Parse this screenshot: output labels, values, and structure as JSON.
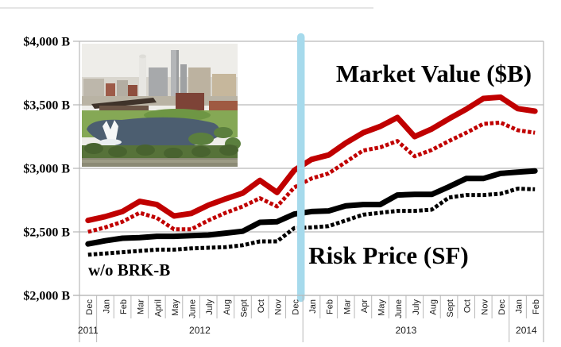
{
  "annotations": {
    "market_value_title": "Market Value ($B)",
    "risk_price_title": "Risk Price (SF)",
    "wo_brkb_label": "w/o BRK-B"
  },
  "y_axis": {
    "tick_labels": [
      "$4,000 B",
      "$3,500 B",
      "$3,000 B",
      "$2,500 B",
      "$2,000 B"
    ],
    "tick_values": [
      4000,
      3500,
      3000,
      2500,
      2000
    ]
  },
  "x_axis": {
    "month_labels": [
      "Dec",
      "Jan",
      "Feb",
      "Mar",
      "April",
      "May",
      "June",
      "July",
      "Aug",
      "Sept",
      "Oct",
      "Nov",
      "Dec",
      "Jan",
      "Feb",
      "Mar",
      "Apr",
      "May",
      "June",
      "July",
      "Aug",
      "Sept",
      "Oct",
      "Nov",
      "Dec",
      "Jan",
      "Feb"
    ],
    "year_labels": [
      {
        "label": "2011",
        "first_month_index": 0,
        "last_month_index": 0
      },
      {
        "label": "2012",
        "first_month_index": 1,
        "last_month_index": 12
      },
      {
        "label": "2013",
        "first_month_index": 13,
        "last_month_index": 24
      },
      {
        "label": "2014",
        "first_month_index": 25,
        "last_month_index": 26
      }
    ]
  },
  "colors": {
    "market_value": "#C00000",
    "risk_price": "#000000",
    "divider": "#A6DAEC",
    "gridline": "#B9B9B9",
    "top_rule": "#CBCBCB"
  },
  "chart_data": {
    "type": "line",
    "title": "Market Value ($B) vs Risk Price (SF)",
    "x_categories": [
      "Dec 2011",
      "Jan 2012",
      "Feb 2012",
      "Mar 2012",
      "April 2012",
      "May 2012",
      "June 2012",
      "July 2012",
      "Aug 2012",
      "Sept 2012",
      "Oct 2012",
      "Nov 2012",
      "Dec 2012",
      "Jan 2013",
      "Feb 2013",
      "Mar 2013",
      "Apr 2013",
      "May 2013",
      "June 2013",
      "July 2013",
      "Aug 2013",
      "Sept 2013",
      "Oct 2013",
      "Nov 2013",
      "Dec 2013",
      "Jan 2014",
      "Feb 2014"
    ],
    "ylim": [
      2000,
      4000
    ],
    "y_tick_step": 500,
    "y_unit": "$ Billions",
    "grid": true,
    "legend_position": "none (labels drawn inside plot)",
    "series": [
      {
        "name": "Market Value ($B)",
        "line_style": "solid",
        "color": "#C00000",
        "values": [
          2590,
          2620,
          2660,
          2740,
          2715,
          2625,
          2645,
          2710,
          2760,
          2805,
          2905,
          2810,
          2985,
          3070,
          3105,
          3200,
          3280,
          3330,
          3400,
          3250,
          3310,
          3390,
          3465,
          3550,
          3560,
          3470,
          3450
        ]
      },
      {
        "name": "Market Value ($B) w/o BRK-B",
        "line_style": "dotted",
        "color": "#C00000",
        "values": [
          2500,
          2535,
          2580,
          2650,
          2610,
          2520,
          2520,
          2590,
          2650,
          2700,
          2765,
          2700,
          2850,
          2920,
          2960,
          3050,
          3140,
          3165,
          3215,
          3095,
          3145,
          3215,
          3280,
          3350,
          3360,
          3300,
          3280
        ]
      },
      {
        "name": "Risk Price (SF)",
        "line_style": "solid",
        "color": "#000000",
        "values": [
          2405,
          2430,
          2450,
          2455,
          2465,
          2465,
          2470,
          2475,
          2490,
          2505,
          2575,
          2580,
          2640,
          2660,
          2665,
          2705,
          2715,
          2715,
          2790,
          2795,
          2795,
          2855,
          2920,
          2920,
          2960,
          2970,
          2980
        ]
      },
      {
        "name": "Risk Price (SF) w/o BRK-B",
        "line_style": "dotted",
        "color": "#000000",
        "values": [
          2320,
          2330,
          2340,
          2350,
          2360,
          2360,
          2370,
          2375,
          2380,
          2395,
          2425,
          2425,
          2530,
          2535,
          2545,
          2590,
          2635,
          2650,
          2665,
          2665,
          2675,
          2770,
          2790,
          2790,
          2800,
          2840,
          2835
        ]
      }
    ],
    "divider_annotation": {
      "description": "vertical highlight between Dec 2012 and Jan 2013",
      "color": "#A6DAEC"
    }
  }
}
